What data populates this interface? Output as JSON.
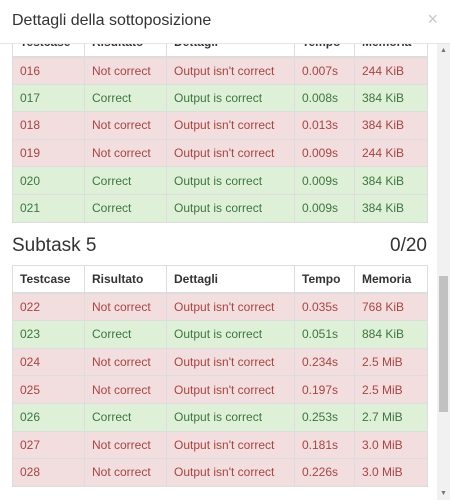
{
  "modal": {
    "title": "Dettagli della sottoposizione",
    "close_symbol": "×"
  },
  "columns": [
    "Testcase",
    "Risultato",
    "Dettagli",
    "Tempo",
    "Memoria"
  ],
  "subtask_prev_rows": [
    {
      "testcase": "016",
      "result": "Not correct",
      "details": "Output isn't correct",
      "time": "0.007s",
      "memory": "244 KiB",
      "status": "fail"
    },
    {
      "testcase": "017",
      "result": "Correct",
      "details": "Output is correct",
      "time": "0.008s",
      "memory": "384 KiB",
      "status": "ok"
    },
    {
      "testcase": "018",
      "result": "Not correct",
      "details": "Output isn't correct",
      "time": "0.013s",
      "memory": "384 KiB",
      "status": "fail"
    },
    {
      "testcase": "019",
      "result": "Not correct",
      "details": "Output isn't correct",
      "time": "0.009s",
      "memory": "244 KiB",
      "status": "fail"
    },
    {
      "testcase": "020",
      "result": "Correct",
      "details": "Output is correct",
      "time": "0.009s",
      "memory": "384 KiB",
      "status": "ok"
    },
    {
      "testcase": "021",
      "result": "Correct",
      "details": "Output is correct",
      "time": "0.009s",
      "memory": "384 KiB",
      "status": "ok"
    }
  ],
  "subtask5": {
    "title": "Subtask 5",
    "score": "0/20",
    "rows": [
      {
        "testcase": "022",
        "result": "Not correct",
        "details": "Output isn't correct",
        "time": "0.035s",
        "memory": "768 KiB",
        "status": "fail"
      },
      {
        "testcase": "023",
        "result": "Correct",
        "details": "Output is correct",
        "time": "0.051s",
        "memory": "884 KiB",
        "status": "ok"
      },
      {
        "testcase": "024",
        "result": "Not correct",
        "details": "Output isn't correct",
        "time": "0.234s",
        "memory": "2.5 MiB",
        "status": "fail"
      },
      {
        "testcase": "025",
        "result": "Not correct",
        "details": "Output isn't correct",
        "time": "0.197s",
        "memory": "2.5 MiB",
        "status": "fail"
      },
      {
        "testcase": "026",
        "result": "Correct",
        "details": "Output is correct",
        "time": "0.253s",
        "memory": "2.7 MiB",
        "status": "ok"
      },
      {
        "testcase": "027",
        "result": "Not correct",
        "details": "Output isn't correct",
        "time": "0.181s",
        "memory": "3.0 MiB",
        "status": "fail"
      },
      {
        "testcase": "028",
        "result": "Not correct",
        "details": "Output isn't correct",
        "time": "0.226s",
        "memory": "3.0 MiB",
        "status": "fail"
      }
    ]
  },
  "scrollbar": {
    "up_icon": "triangle-up",
    "down_icon": "triangle-down"
  }
}
